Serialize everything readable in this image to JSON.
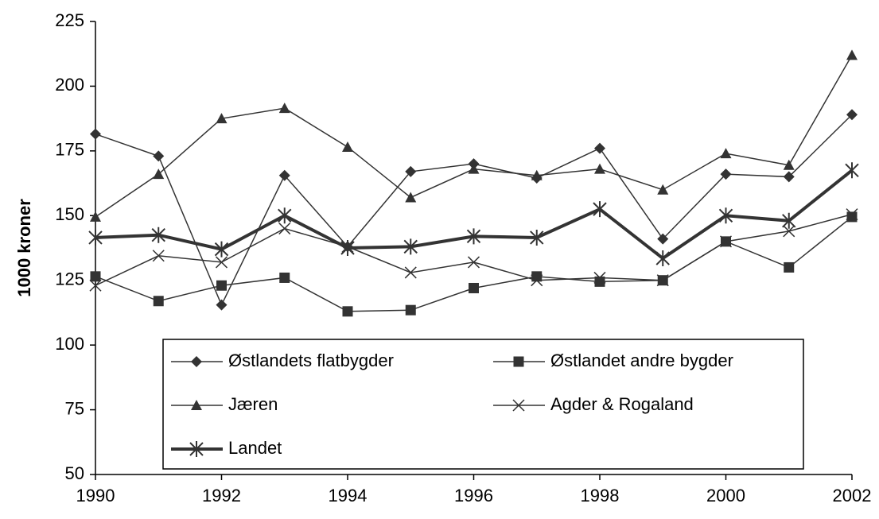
{
  "chart_data": {
    "type": "line",
    "ylabel": "1000 kroner",
    "x": [
      1990,
      1991,
      1992,
      1993,
      1994,
      1995,
      1996,
      1997,
      1998,
      1999,
      2000,
      2001,
      2002
    ],
    "xlim": [
      1990,
      2002
    ],
    "xticks": [
      1990,
      1992,
      1994,
      1996,
      1998,
      2000,
      2002
    ],
    "ylim": [
      50,
      225
    ],
    "yticks": [
      50,
      75,
      100,
      125,
      150,
      175,
      200,
      225
    ],
    "series": [
      {
        "name": "Østlandets flatbygder",
        "color": "#333333",
        "marker": "diamond",
        "width": 1.5,
        "values": [
          181.5,
          173,
          115.5,
          165.5,
          138,
          167,
          170,
          164.5,
          176,
          141,
          166,
          165,
          189
        ]
      },
      {
        "name": "Østlandet andre bygder",
        "color": "#333333",
        "marker": "square",
        "width": 1.5,
        "values": [
          126.5,
          117,
          123,
          126,
          113,
          113.5,
          122,
          126.5,
          124.5,
          125,
          140,
          130,
          149.5
        ]
      },
      {
        "name": "Jæren",
        "color": "#333333",
        "marker": "triangle",
        "width": 1.5,
        "values": [
          149.5,
          166,
          187.5,
          191.5,
          176.5,
          157,
          168,
          165.5,
          168,
          160,
          174,
          169.5,
          212
        ]
      },
      {
        "name": "Agder & Rogaland",
        "color": "#333333",
        "marker": "x",
        "width": 1.5,
        "values": [
          123,
          134.5,
          132,
          145,
          138,
          128,
          132,
          125,
          126,
          125,
          140,
          144,
          150.5
        ]
      },
      {
        "name": "Landet",
        "color": "#333333",
        "marker": "star",
        "width": 4,
        "values": [
          141.5,
          142.5,
          137,
          150,
          137.5,
          138,
          142,
          141.5,
          152.5,
          133.5,
          150,
          148,
          167.5
        ]
      }
    ]
  }
}
